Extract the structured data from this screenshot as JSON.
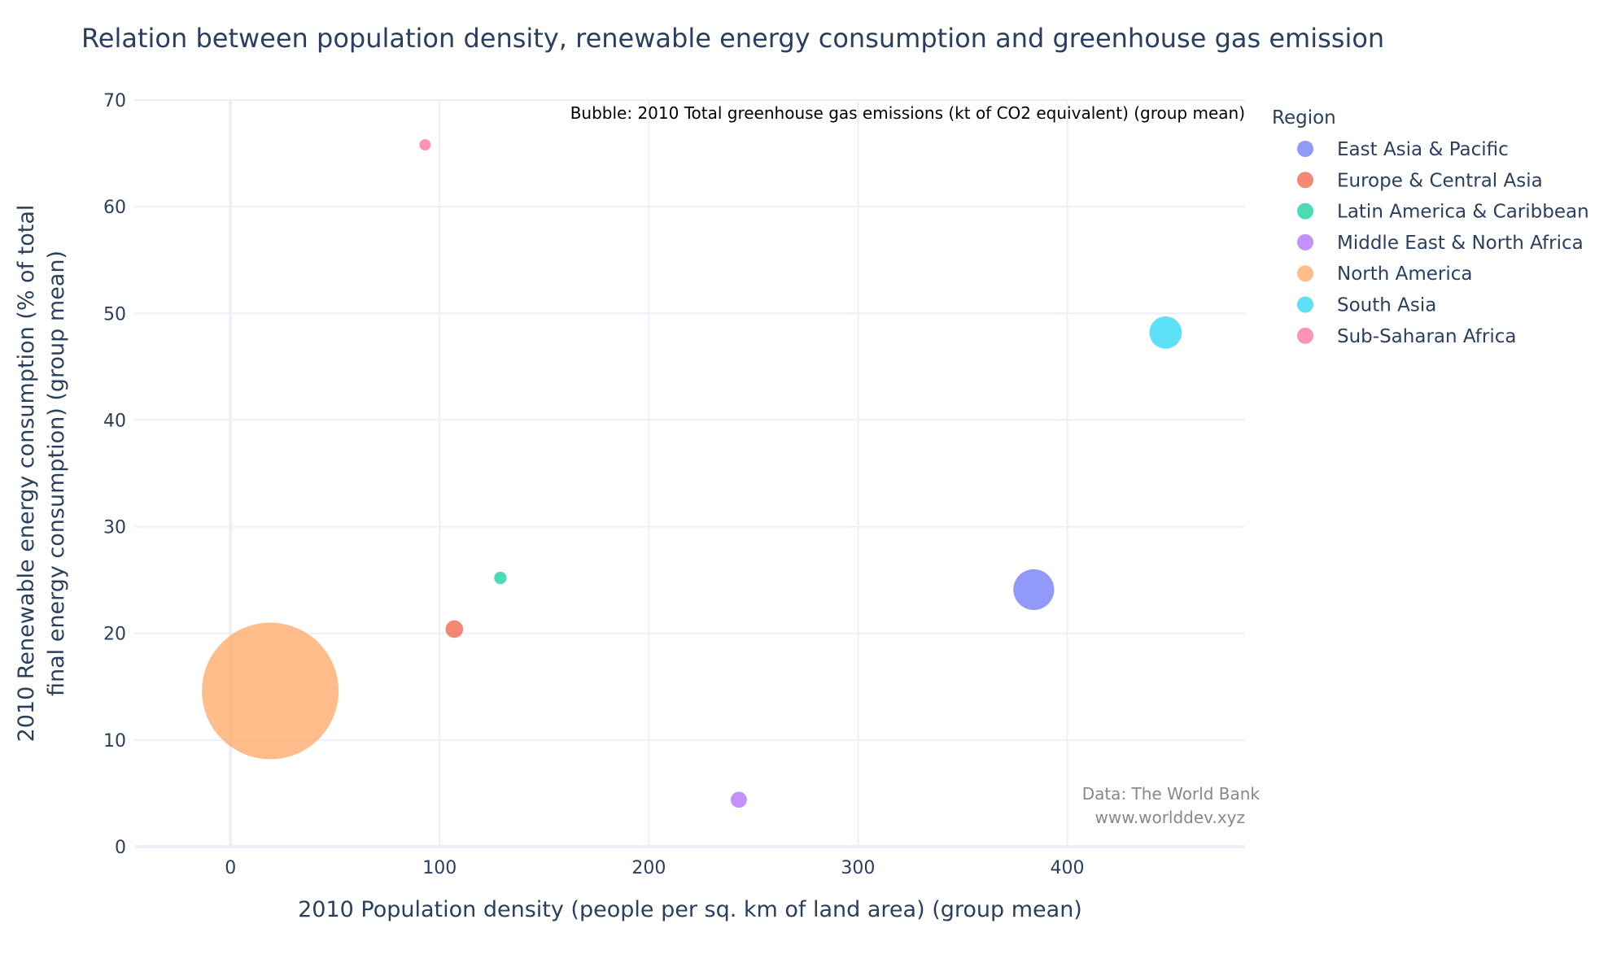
{
  "chart_data": {
    "type": "scatter",
    "title": "Relation between population density, renewable energy consumption and greenhouse gas emission",
    "xlabel": "2010 Population density (people per sq. km of land area) (group mean)",
    "ylabel_line1": "2010 Renewable energy consumption (% of total",
    "ylabel_line2": "final energy consumption) (group mean)",
    "xlim": [
      -46,
      485
    ],
    "ylim": [
      0,
      70
    ],
    "x_ticks": [
      0,
      100,
      200,
      300,
      400
    ],
    "y_ticks": [
      0,
      10,
      20,
      30,
      40,
      50,
      60,
      70
    ],
    "grid": true,
    "legend_title": "Region",
    "legend_position": "right",
    "bubble_note": "Bubble: 2010 Total greenhouse gas emissions (kt of CO2 equivalent) (group mean)",
    "source_line1": "Data: The World Bank",
    "source_line2": "www.worlddev.xyz",
    "series": [
      {
        "name": "East Asia & Pacific",
        "color": "#636efa",
        "x": 384,
        "y": 24.1,
        "size": 405000
      },
      {
        "name": "Europe & Central Asia",
        "color": "#ef553b",
        "x": 107,
        "y": 20.4,
        "size": 75000
      },
      {
        "name": "Latin America & Caribbean",
        "color": "#00cc96",
        "x": 129,
        "y": 25.2,
        "size": 38000
      },
      {
        "name": "Middle East & North Africa",
        "color": "#ab63fa",
        "x": 243,
        "y": 4.4,
        "size": 63000
      },
      {
        "name": "North America",
        "color": "#ffa15a",
        "x": 19,
        "y": 14.6,
        "size": 4550000
      },
      {
        "name": "South Asia",
        "color": "#19d3f3",
        "x": 447,
        "y": 48.2,
        "size": 255000
      },
      {
        "name": "Sub-Saharan Africa",
        "color": "#ff6692",
        "x": 93,
        "y": 65.8,
        "size": 16000
      }
    ]
  }
}
